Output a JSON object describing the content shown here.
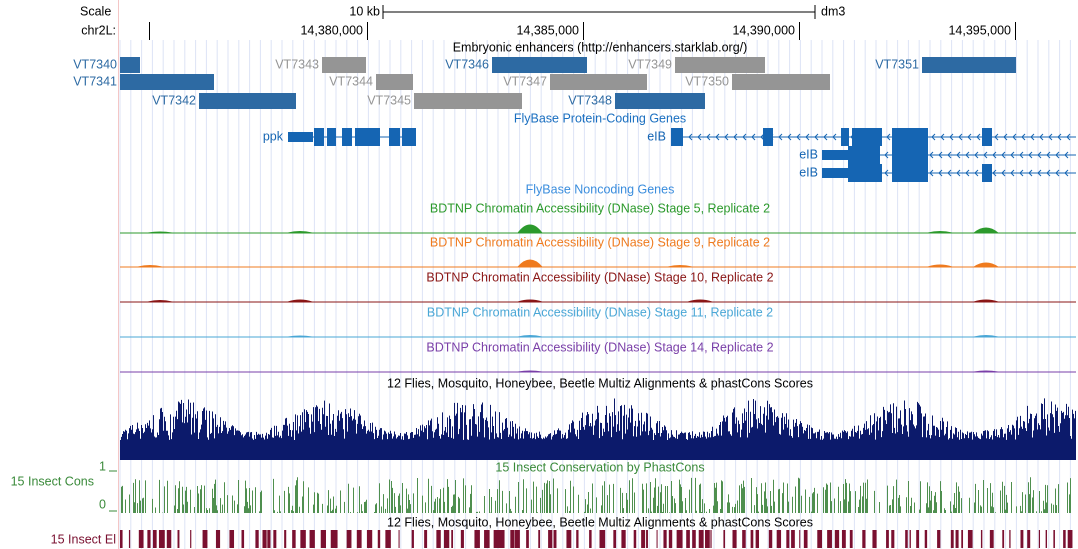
{
  "header": {
    "scale": "Scale",
    "scale_bar": "10 kb",
    "assembly": "dm3",
    "chrom": "chr2L:",
    "positions": [
      "14,380,000",
      "14,385,000",
      "14,390,000",
      "14,395,000"
    ]
  },
  "tracks": {
    "enhancers": {
      "title": "Embryonic enhancers (http://enhancers.starklab.org/)",
      "items": [
        {
          "label": "VT7340"
        },
        {
          "label": "VT7341"
        },
        {
          "label": "VT7342"
        },
        {
          "label": "VT7343"
        },
        {
          "label": "VT7344"
        },
        {
          "label": "VT7345"
        },
        {
          "label": "VT7346"
        },
        {
          "label": "VT7347"
        },
        {
          "label": "VT7348"
        },
        {
          "label": "VT7349"
        },
        {
          "label": "VT7350"
        },
        {
          "label": "VT7351"
        }
      ]
    },
    "genes": {
      "title": "FlyBase Protein-Coding Genes",
      "items": [
        {
          "label": "ppk"
        },
        {
          "label": "eIB"
        },
        {
          "label": "eIB"
        },
        {
          "label": "eIB"
        }
      ]
    },
    "noncoding": {
      "title": "FlyBase Noncoding Genes"
    },
    "dnase": [
      {
        "title": "BDTNP Chromatin Accessibility (DNase) Stage 5, Replicate 2"
      },
      {
        "title": "BDTNP Chromatin Accessibility (DNase) Stage 9, Replicate 2"
      },
      {
        "title": "BDTNP Chromatin Accessibility (DNase) Stage 10, Replicate 2"
      },
      {
        "title": "BDTNP Chromatin Accessibility (DNase) Stage 11, Replicate 2"
      },
      {
        "title": "BDTNP Chromatin Accessibility (DNase) Stage 14, Replicate 2"
      }
    ],
    "multiz": {
      "title": "12 Flies, Mosquito, Honeybee, Beetle Multiz Alignments & phastCons Scores"
    },
    "phastcons": {
      "side_label": "15 Insect Cons",
      "max": 1,
      "min": 0,
      "title": "15 Insect Conservation by PhastCons"
    },
    "elements": {
      "side_label": "15 Insect El",
      "title": "12 Flies, Mosquito, Honeybee, Beetle Multiz Alignments & phastCons Scores"
    }
  }
}
